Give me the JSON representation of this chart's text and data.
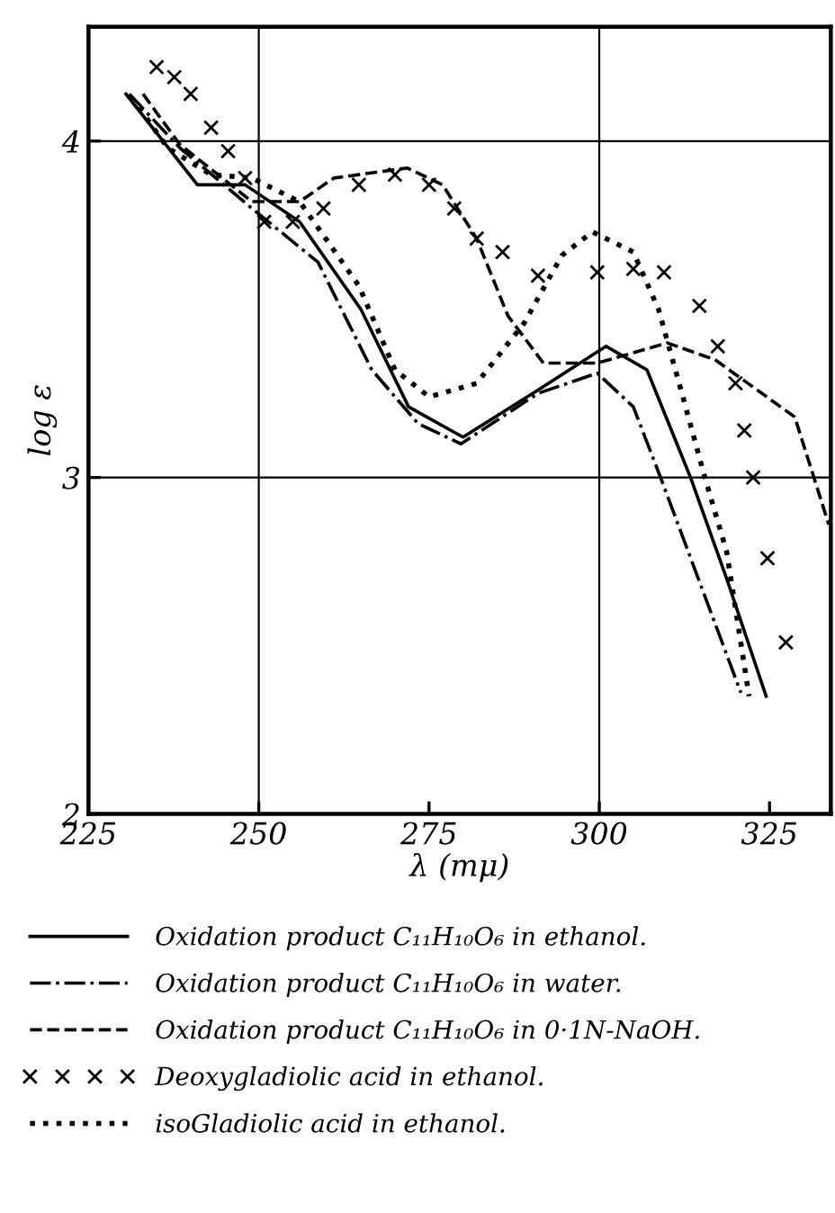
{
  "chart_data": {
    "type": "line",
    "xlabel": "λ (mμ)",
    "ylabel": "log ε",
    "xlim": [
      225,
      334
    ],
    "ylim": [
      2,
      4.34
    ],
    "xticks": [
      225,
      250,
      275,
      300,
      325
    ],
    "yticks": [
      2,
      3,
      4
    ],
    "grid": false,
    "legend": "bottom",
    "ref_lines": [
      {
        "axis": "x",
        "value": 250,
        "label": null
      },
      {
        "axis": "x",
        "value": 300,
        "label": null
      },
      {
        "axis": "y",
        "value": 3,
        "label": null
      },
      {
        "axis": "y",
        "value": 4,
        "label": null
      }
    ],
    "series": [
      {
        "name": "Oxidation product C₁₁H₁₀O₆ in ethanol.",
        "color": "#000000",
        "line_style": "solid",
        "marker": "none",
        "x": [
          230.5,
          241,
          248,
          256,
          265,
          272,
          280,
          291,
          301,
          307,
          313.4,
          318.7,
          324.5
        ],
        "values": [
          4.14,
          3.87,
          3.87,
          3.76,
          3.5,
          3.21,
          3.12,
          3.26,
          3.39,
          3.32,
          3.0,
          2.7,
          2.35
        ]
      },
      {
        "name": "Oxidation product C₁₁H₁₀O₆ in water.",
        "color": "#000000",
        "line_style": "dashdot",
        "marker": "none",
        "x": [
          231,
          238.4,
          249,
          258.7,
          266.6,
          273.4,
          279.7,
          291,
          299.7,
          305,
          309,
          320.8
        ],
        "values": [
          4.14,
          3.98,
          3.8,
          3.64,
          3.32,
          3.16,
          3.1,
          3.25,
          3.31,
          3.21,
          3.0,
          2.36
        ]
      },
      {
        "name": "Oxidation product C₁₁H₁₀O₆ in 0·1N-NaOH.",
        "color": "#000000",
        "line_style": "dashed",
        "marker": "none",
        "x": [
          233,
          238.4,
          249,
          256,
          261,
          271.8,
          277,
          282,
          286.6,
          291.8,
          299.7,
          310,
          317,
          328.7,
          333.7
        ],
        "values": [
          4.14,
          3.99,
          3.82,
          3.82,
          3.89,
          3.92,
          3.87,
          3.71,
          3.48,
          3.34,
          3.34,
          3.4,
          3.35,
          3.18,
          2.86
        ]
      },
      {
        "name": "Deoxygladiolic acid in ethanol.",
        "type": "scatter",
        "color": "#000000",
        "marker": "cross",
        "x": [
          235,
          237.6,
          240,
          243,
          245.5,
          248,
          250.8,
          255,
          259.5,
          264.7,
          270,
          275,
          278.7,
          282,
          285.8,
          291,
          299.7,
          305,
          309.5,
          314.7,
          317.4,
          320,
          321.3,
          322.6,
          324.7,
          327.4
        ],
        "values": [
          4.22,
          4.19,
          4.14,
          4.04,
          3.97,
          3.89,
          3.76,
          3.76,
          3.8,
          3.87,
          3.9,
          3.87,
          3.8,
          3.71,
          3.67,
          3.6,
          3.61,
          3.62,
          3.61,
          3.51,
          3.39,
          3.28,
          3.14,
          3.0,
          2.76,
          2.51
        ]
      },
      {
        "name": "isoGladiolic acid in ethanol.",
        "color": "#000000",
        "line_style": "dotted",
        "marker": "none",
        "x": [
          232.4,
          236.6,
          243,
          249,
          256,
          264.7,
          270,
          275,
          282,
          289,
          294.5,
          299,
          305,
          308.7,
          312,
          315.5,
          318.7,
          322
        ],
        "values": [
          4.1,
          3.98,
          3.9,
          3.89,
          3.82,
          3.57,
          3.32,
          3.24,
          3.28,
          3.46,
          3.66,
          3.73,
          3.67,
          3.5,
          3.26,
          3.0,
          2.78,
          2.35
        ]
      }
    ]
  }
}
